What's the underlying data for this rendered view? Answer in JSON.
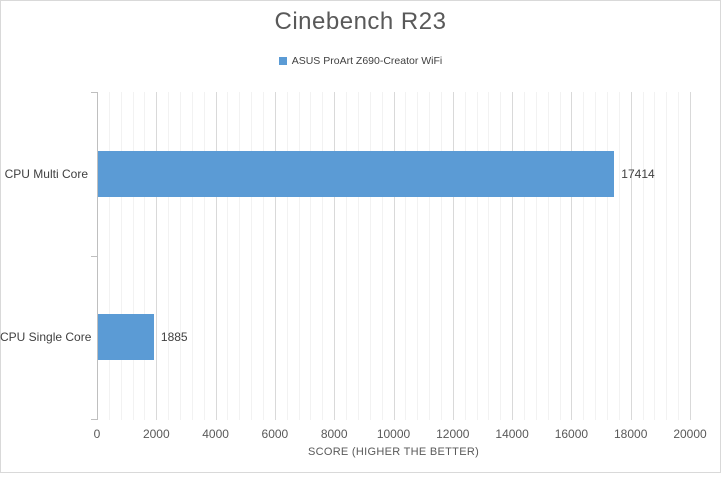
{
  "chart_data": {
    "type": "bar",
    "orientation": "horizontal",
    "title": "Cinebench R23",
    "categories": [
      "CPU Multi Core",
      "CPU Single Core"
    ],
    "series": [
      {
        "name": "ASUS ProArt Z690-Creator WiFi",
        "values": [
          17414,
          1885
        ]
      }
    ],
    "value_labels": [
      "17414",
      "1885"
    ],
    "xlabel": "SCORE (HIGHER THE BETTER)",
    "ylabel": "",
    "xlim": [
      0,
      20000
    ],
    "x_major_ticks": [
      0,
      2000,
      4000,
      6000,
      8000,
      10000,
      12000,
      14000,
      16000,
      18000,
      20000
    ],
    "x_major_step": 2000,
    "x_minor_step": 400,
    "grid": "major+minor vertical gridlines",
    "legend_position": "top-center",
    "colors": {
      "bar": "#5b9bd5",
      "title_text": "#595959",
      "axis_text": "#595959",
      "label_text": "#404040",
      "major_grid": "#d9d9d9",
      "minor_grid": "#f2f2f2",
      "axis_line": "#bfbfbf",
      "chart_border": "#d9d9d9",
      "background": "#ffffff"
    }
  }
}
